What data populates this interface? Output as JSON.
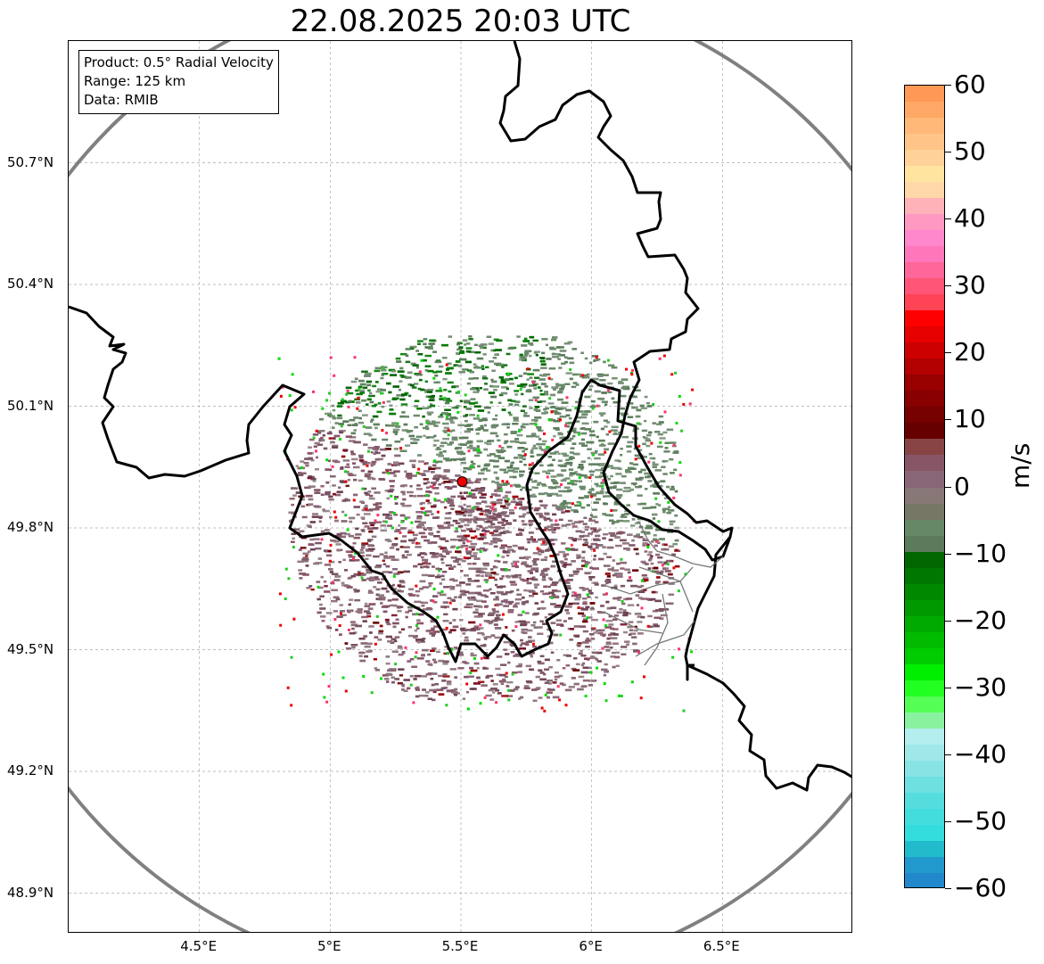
{
  "title": "22.08.2025 20:03 UTC",
  "info": {
    "product": "Product: 0.5° Radial Velocity",
    "range": "Range: 125 km",
    "source": "Data: RMIB"
  },
  "map": {
    "lon_range": [
      4.0,
      7.0
    ],
    "lat_range": [
      48.8,
      51.0
    ],
    "radar_site": {
      "lon": 5.505,
      "lat": 49.914
    },
    "range_ring_color": "#808080",
    "site_marker_color": "#ee0000",
    "lat_ticks": [
      {
        "value": 50.7,
        "label": "50.7°N"
      },
      {
        "value": 50.4,
        "label": "50.4°N"
      },
      {
        "value": 50.1,
        "label": "50.1°N"
      },
      {
        "value": 49.8,
        "label": "49.8°N"
      },
      {
        "value": 49.5,
        "label": "49.5°N"
      },
      {
        "value": 49.2,
        "label": "49.2°N"
      },
      {
        "value": 48.9,
        "label": "48.9°N"
      }
    ],
    "lon_ticks": [
      {
        "value": 4.5,
        "label": "4.5°E"
      },
      {
        "value": 5.0,
        "label": "5°E"
      },
      {
        "value": 5.5,
        "label": "5.5°E"
      },
      {
        "value": 6.0,
        "label": "6°E"
      },
      {
        "value": 6.5,
        "label": "6.5°E"
      }
    ]
  },
  "colorbar": {
    "unit": "m/s",
    "min": -60,
    "max": 60,
    "ticks": [
      {
        "value": 60,
        "label": "60"
      },
      {
        "value": 50,
        "label": "50"
      },
      {
        "value": 40,
        "label": "40"
      },
      {
        "value": 30,
        "label": "30"
      },
      {
        "value": 20,
        "label": "20"
      },
      {
        "value": 10,
        "label": "10"
      },
      {
        "value": 0,
        "label": "0"
      },
      {
        "value": -10,
        "label": "−10"
      },
      {
        "value": -20,
        "label": "−20"
      },
      {
        "value": -30,
        "label": "−30"
      },
      {
        "value": -40,
        "label": "−40"
      },
      {
        "value": -50,
        "label": "−50"
      },
      {
        "value": -60,
        "label": "−60"
      }
    ],
    "colors_top_to_bottom": [
      "#ff9955",
      "#ffa866",
      "#ffb877",
      "#ffc588",
      "#ffd299",
      "#ffe4a0",
      "#ffd7a8",
      "#ffb3b8",
      "#ff99c2",
      "#ff88cc",
      "#ff77bb",
      "#ff6699",
      "#ff5577",
      "#ff4455",
      "#ff0000",
      "#e60000",
      "#cc0000",
      "#b30000",
      "#990000",
      "#880000",
      "#770000",
      "#660000",
      "#884444",
      "#885566",
      "#886677",
      "#887777",
      "#777766",
      "#668866",
      "#5c7a5c",
      "#006600",
      "#007700",
      "#008800",
      "#009900",
      "#00aa00",
      "#00bb00",
      "#00cc00",
      "#00ee00",
      "#22ff22",
      "#55ff55",
      "#88f2a0",
      "#b4eeee",
      "#a0e8e8",
      "#88e4e4",
      "#6ee0e0",
      "#55dddd",
      "#44dddd",
      "#33dddd",
      "#22bbcc",
      "#2299cc",
      "#2288cc"
    ]
  }
}
